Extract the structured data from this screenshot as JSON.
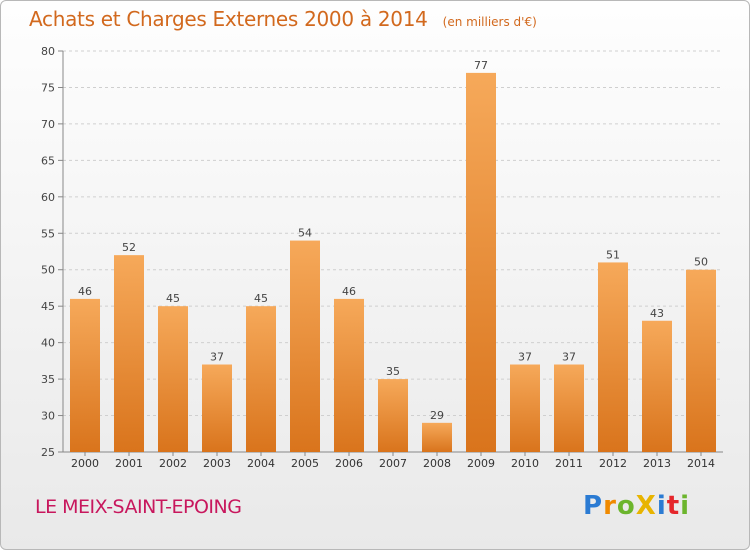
{
  "title": "Achats et Charges Externes 2000 à 2014",
  "unit": "(en milliers d'€)",
  "commune": "LE MEIX-SAINT-EPOING",
  "logo": {
    "text": "Proxiti",
    "letters": [
      {
        "ch": "P",
        "color": "#2b7bd3"
      },
      {
        "ch": "r",
        "color": "#f08a00"
      },
      {
        "ch": "o",
        "color": "#6cb52d"
      },
      {
        "ch": "X",
        "color": "#e8b400"
      },
      {
        "ch": "i",
        "color": "#2b7bd3"
      },
      {
        "ch": "t",
        "color": "#e5262b"
      },
      {
        "ch": "i",
        "color": "#6cb52d"
      }
    ]
  },
  "colors": {
    "bar_top": "#f6a95a",
    "bar_bottom": "#d9741c",
    "title": "#d2691e",
    "commune": "#c8175d"
  },
  "chart_data": {
    "type": "bar",
    "categories": [
      "2000",
      "2001",
      "2002",
      "2003",
      "2004",
      "2005",
      "2006",
      "2007",
      "2008",
      "2009",
      "2010",
      "2011",
      "2012",
      "2013",
      "2014"
    ],
    "values": [
      46,
      52,
      45,
      37,
      45,
      54,
      46,
      35,
      29,
      77,
      37,
      37,
      51,
      43,
      50
    ],
    "ylim": [
      25,
      80
    ],
    "yticks": [
      25,
      30,
      35,
      40,
      45,
      50,
      55,
      60,
      65,
      70,
      75,
      80
    ],
    "grid": true,
    "xlabel": "",
    "ylabel": ""
  }
}
